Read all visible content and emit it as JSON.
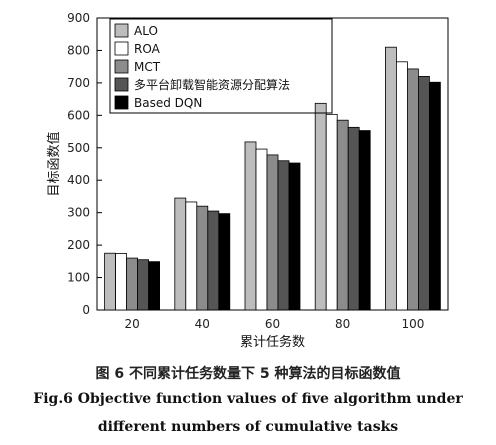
{
  "chart_data": {
    "type": "bar",
    "categories": [
      "20",
      "40",
      "60",
      "80",
      "100"
    ],
    "series": [
      {
        "name": "ALO",
        "color": "#bdbdbd",
        "values": [
          175,
          345,
          518,
          637,
          810
        ]
      },
      {
        "name": "ROA",
        "color": "#ffffff",
        "values": [
          174,
          333,
          496,
          603,
          765
        ]
      },
      {
        "name": "MCT",
        "color": "#8c8c8c",
        "values": [
          160,
          320,
          478,
          585,
          743
        ]
      },
      {
        "name": "多平台卸载智能资源分配算法",
        "color": "#555555",
        "values": [
          155,
          305,
          460,
          563,
          720
        ]
      },
      {
        "name": "Based DQN",
        "color": "#000000",
        "values": [
          149,
          297,
          453,
          553,
          702
        ]
      }
    ],
    "xlabel": "累计任务数",
    "ylabel": "目标函数值",
    "ylim": [
      0,
      900
    ],
    "yticks": [
      0,
      100,
      200,
      300,
      400,
      500,
      600,
      700,
      800,
      900
    ],
    "legend": "top-left",
    "grid": false
  },
  "caption": {
    "cn": "图 6    不同累计任务数量下 5 种算法的目标函数值",
    "en_line1": "Fig.6    Objective function values of five algorithm under",
    "en_line2": "different numbers of  cumulative tasks"
  }
}
